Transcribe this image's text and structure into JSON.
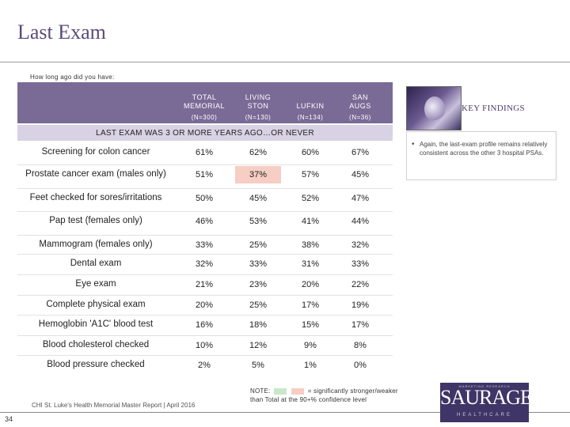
{
  "slide": {
    "title": "Last Exam",
    "question": "How long ago did you have:"
  },
  "table": {
    "columns": [
      {
        "line1": "TOTAL",
        "line2": "MEMORIAL",
        "n": "(N=300)"
      },
      {
        "line1": "LIVING",
        "line2": "STON",
        "n": "(N=130)"
      },
      {
        "line1": "",
        "line2": "LUFKIN",
        "n": "(N=134)"
      },
      {
        "line1": "SAN",
        "line2": "AUGS",
        "n": "(N=36)"
      }
    ],
    "subheader": "LAST EXAM WAS 3 OR MORE YEARS AGO…OR NEVER",
    "rows": [
      {
        "label": "Screening for colon cancer",
        "values": [
          "61%",
          "62%",
          "60%",
          "67%"
        ],
        "highlights": [
          "",
          "",
          "",
          ""
        ]
      },
      {
        "label": "Prostate cancer exam (males only)",
        "values": [
          "51%",
          "37%",
          "57%",
          "45%"
        ],
        "highlights": [
          "",
          "red",
          "",
          ""
        ]
      },
      {
        "label": "Feet checked for sores/irritations",
        "values": [
          "50%",
          "45%",
          "52%",
          "47%"
        ],
        "highlights": [
          "",
          "",
          "",
          ""
        ]
      },
      {
        "label": "Pap test (females only)",
        "values": [
          "46%",
          "53%",
          "41%",
          "44%"
        ],
        "highlights": [
          "",
          "",
          "",
          ""
        ]
      },
      {
        "label": "Mammogram (females only)",
        "values": [
          "33%",
          "25%",
          "38%",
          "32%"
        ],
        "highlights": [
          "",
          "",
          "",
          ""
        ]
      },
      {
        "label": "Dental exam",
        "values": [
          "32%",
          "33%",
          "31%",
          "33%"
        ],
        "highlights": [
          "",
          "",
          "",
          ""
        ]
      },
      {
        "label": "Eye exam",
        "values": [
          "21%",
          "23%",
          "20%",
          "22%"
        ],
        "highlights": [
          "",
          "",
          "",
          ""
        ]
      },
      {
        "label": "Complete physical exam",
        "values": [
          "20%",
          "25%",
          "17%",
          "19%"
        ],
        "highlights": [
          "",
          "",
          "",
          ""
        ]
      },
      {
        "label": "Hemoglobin 'A1C' blood test",
        "values": [
          "16%",
          "18%",
          "15%",
          "17%"
        ],
        "highlights": [
          "",
          "",
          "",
          ""
        ]
      },
      {
        "label": "Blood cholesterol checked",
        "values": [
          "10%",
          "12%",
          "9%",
          "8%"
        ],
        "highlights": [
          "",
          "",
          "",
          ""
        ]
      },
      {
        "label": "Blood pressure checked",
        "values": [
          "2%",
          "5%",
          "1%",
          "0%"
        ],
        "highlights": [
          "",
          "",
          "",
          ""
        ]
      }
    ]
  },
  "key_findings": {
    "title": "KEY FINDINGS",
    "bullet": "•",
    "text": "Again, the last-exam profile remains relatively consistent across the other 3 hospital PSAs.",
    "image_icon": "key-findings-photo"
  },
  "note": {
    "label": "NOTE:",
    "text_after": "= significantly stronger/weaker",
    "line2": "than Total at the 90+% confidence level",
    "colors": {
      "stronger": "#c9e8c9",
      "weaker": "#f6cec4"
    }
  },
  "footer": {
    "source": "CHI St. Luke's Health Memorial Master Report | April 2016",
    "page_number": "34"
  },
  "logo": {
    "top": "MARKETING RESEARCH",
    "main": "SAURAGE",
    "bottom": "HEALTHCARE"
  }
}
